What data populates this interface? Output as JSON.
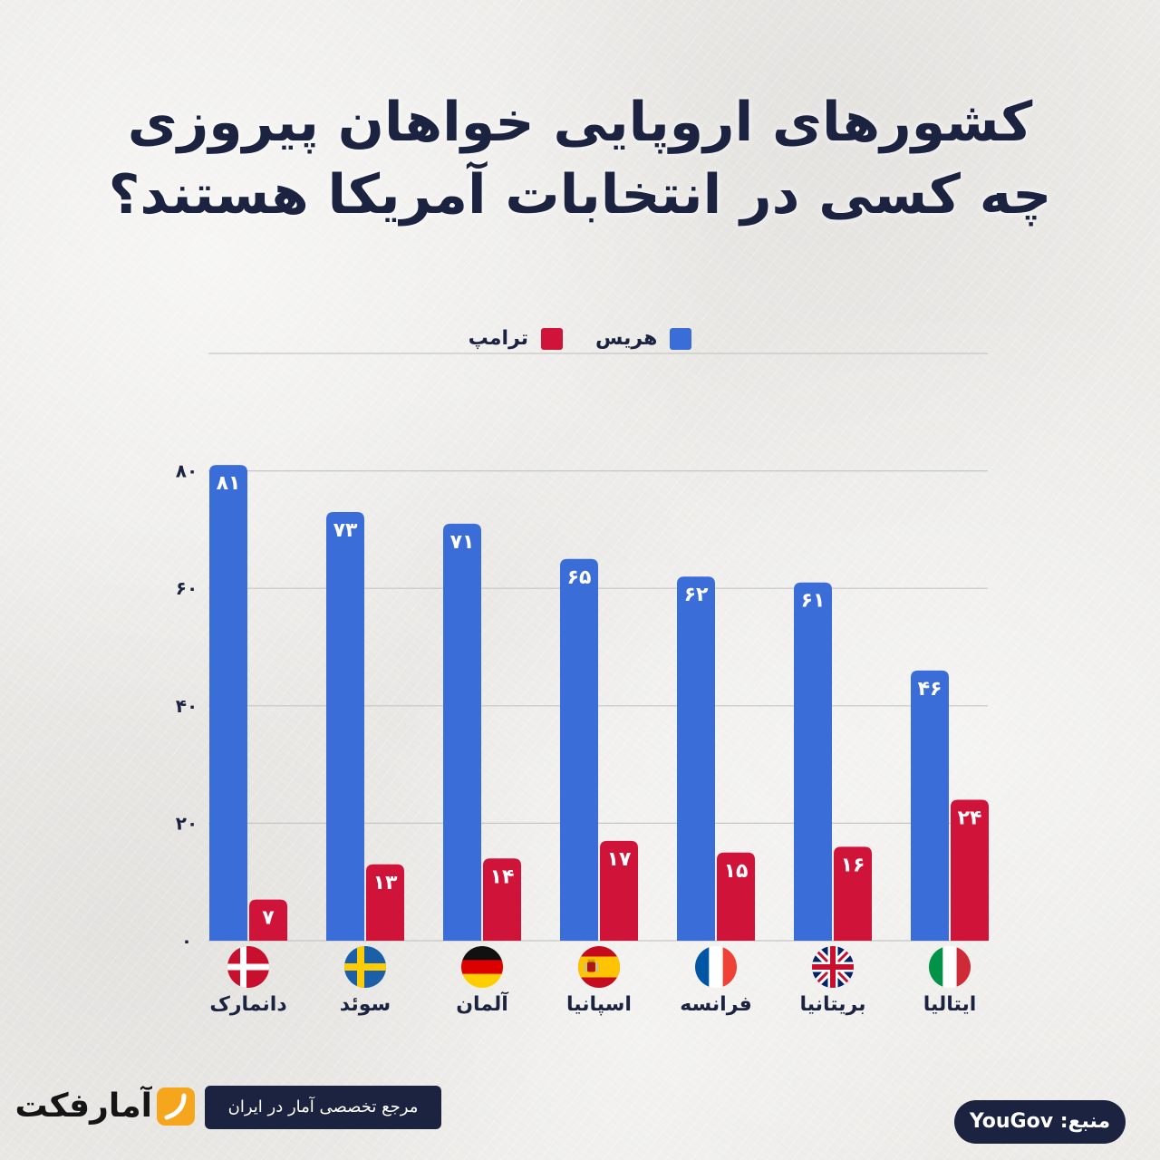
{
  "colors": {
    "text": "#1c2340",
    "background": "#ecebe8",
    "badge": "#1c2340",
    "accent": "#f6a61c",
    "logo": "#151515"
  },
  "chart_data": {
    "type": "bar",
    "title_lines": [
      "کشورهای اروپایی خواهان پیروزی",
      "چه کسی در انتخابات آمریکا هستند؟"
    ],
    "categories": [
      "دانمارک",
      "سوئد",
      "آلمان",
      "اسپانیا",
      "فرانسه",
      "بریتانیا",
      "ایتالیا"
    ],
    "category_flags": [
      "denmark-flag",
      "sweden-flag",
      "germany-flag",
      "spain-flag",
      "france-flag",
      "uk-flag",
      "italy-flag"
    ],
    "series": [
      {
        "name": "هریس",
        "color": "#3b6dd9",
        "values": [
          81,
          73,
          71,
          65,
          62,
          61,
          46
        ],
        "value_labels": [
          "۸۱",
          "۷۳",
          "۷۱",
          "۶۵",
          "۶۲",
          "۶۱",
          "۴۶"
        ]
      },
      {
        "name": "ترامپ",
        "color": "#cf1339",
        "values": [
          7,
          13,
          14,
          17,
          15,
          16,
          24
        ],
        "value_labels": [
          "۷",
          "۱۳",
          "۱۴",
          "۱۷",
          "۱۵",
          "۱۶",
          "۲۴"
        ]
      }
    ],
    "ylim": [
      0,
      100
    ],
    "y_ticks": [
      0,
      20,
      40,
      60,
      80
    ],
    "y_tick_labels": [
      "۰",
      "۲۰",
      "۴۰",
      "۶۰",
      "۸۰"
    ],
    "grid": true,
    "legend_position": "top"
  },
  "footer": {
    "logo_text": "آمارفکت",
    "logo_icon": "brand-mark-icon",
    "tagline": "مرجع تخصصی آمار در ایران",
    "source": "منبع: YouGov"
  }
}
